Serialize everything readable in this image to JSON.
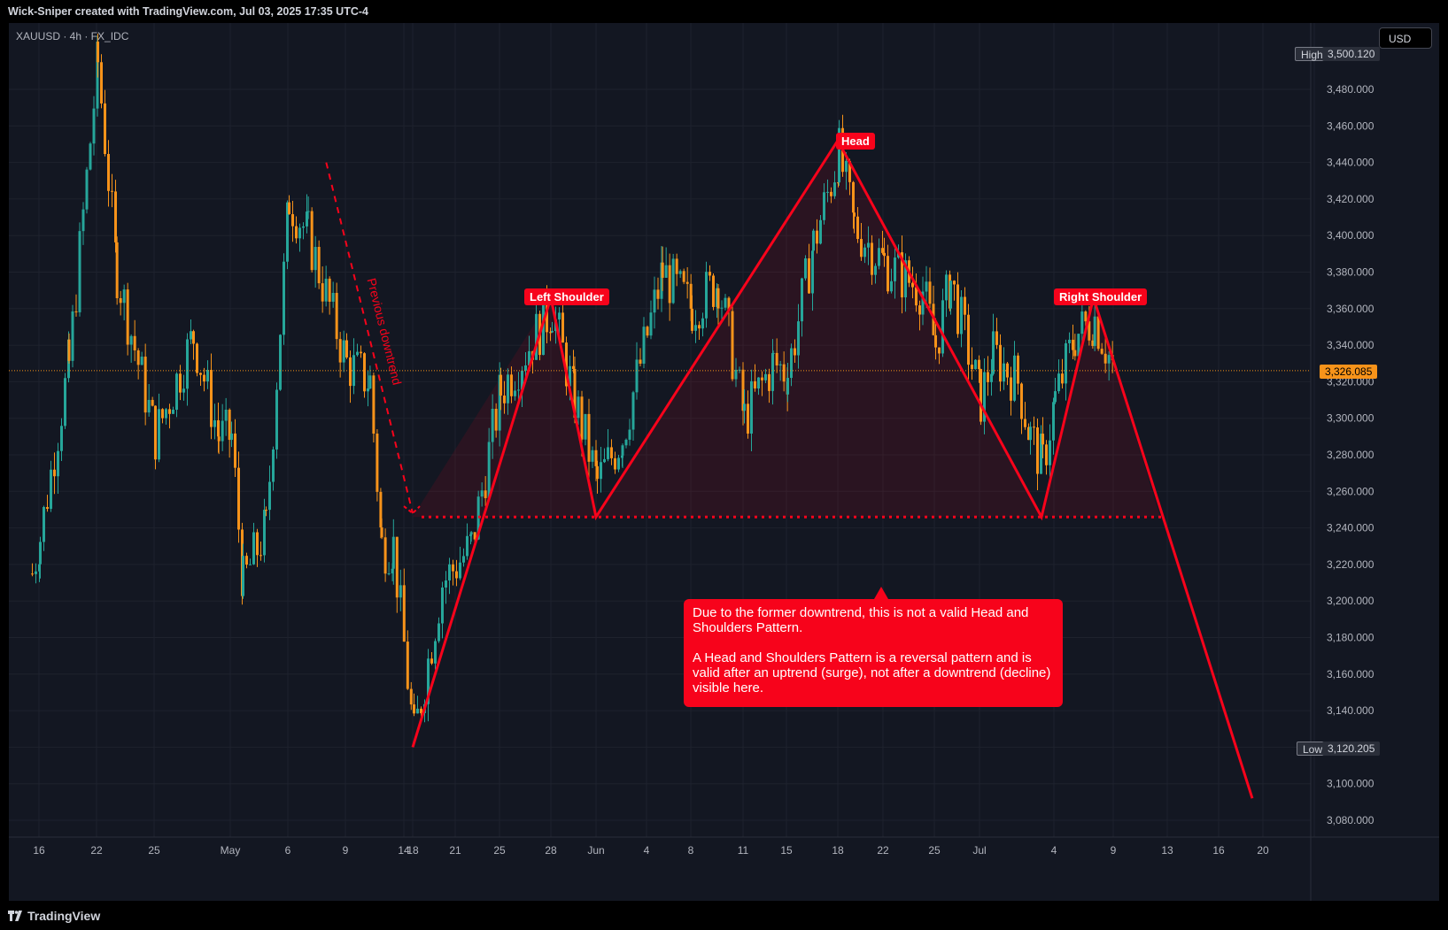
{
  "header": {
    "attribution": "Wick-Sniper created with TradingView.com, Jul 03, 2025 17:35 UTC-4"
  },
  "symbol_info": "XAUUSD · 4h · FX_IDC",
  "currency_button": "USD",
  "price_axis": {
    "ticks": [
      "3,480.000",
      "3,460.000",
      "3,440.000",
      "3,420.000",
      "3,400.000",
      "3,380.000",
      "3,360.000",
      "3,340.000",
      "3,320.000",
      "3,300.000",
      "3,280.000",
      "3,260.000",
      "3,240.000",
      "3,220.000",
      "3,200.000",
      "3,180.000",
      "3,160.000",
      "3,140.000",
      "3,100.000",
      "3,080.000"
    ],
    "high_label": "High",
    "high_value": "3,500.120",
    "low_label": "Low",
    "low_value": "3,120.205",
    "last_price": "3,326.085"
  },
  "time_axis": {
    "ticks": [
      "16",
      "22",
      "25",
      "May",
      "6",
      "9",
      "14",
      "18",
      "21",
      "25",
      "28",
      "Jun",
      "4",
      "8",
      "11",
      "15",
      "18",
      "22",
      "25",
      "Jul",
      "4",
      "9",
      "13",
      "16",
      "20"
    ]
  },
  "annotations": {
    "left_shoulder": "Left Shoulder",
    "head": "Head",
    "right_shoulder": "Right Shoulder",
    "previous_trend": "Previous downtrend",
    "note_line1": "Due to the former downtrend, this is not a valid Head and Shoulders Pattern.",
    "note_line2": "A Head and Shoulders Pattern is a reversal pattern and is valid after an uptrend (surge), not after a downtrend (decline) visible here."
  },
  "footer": {
    "brand": "TradingView"
  },
  "colors": {
    "background": "#131722",
    "bull": "#26a69a",
    "bear": "#f7931a",
    "pattern": "#f7031b",
    "last_price": "#f7931a"
  },
  "chart_data": {
    "type": "candlestick",
    "symbol": "XAUUSD",
    "interval": "4h",
    "ylim": [
      3070,
      3510
    ],
    "high": 3500.12,
    "low": 3120.205,
    "last": 3326.085,
    "anchors_x": [
      "Apr 14",
      "Apr 16",
      "Apr 22",
      "Apr 25",
      "May 1",
      "May 6",
      "May 9",
      "May 14",
      "May 15",
      "May 18",
      "May 21",
      "May 24",
      "May 28",
      "Jun 1",
      "Jun 4",
      "Jun 8",
      "Jun 11",
      "Jun 15",
      "Jun 18",
      "Jun 22",
      "Jun 25",
      "Jul 1",
      "Jul 4",
      "Jul 9",
      "Jul 13",
      "Jul 16",
      "Jul 20"
    ],
    "close_path": [
      {
        "x": "Apr 14",
        "y": 3215
      },
      {
        "x": "Apr 16",
        "y": 3235
      },
      {
        "x": "Apr 19",
        "y": 3330
      },
      {
        "x": "Apr 22",
        "y": 3495
      },
      {
        "x": "Apr 23",
        "y": 3380
      },
      {
        "x": "Apr 25",
        "y": 3290
      },
      {
        "x": "Apr 28",
        "y": 3345
      },
      {
        "x": "Apr 30",
        "y": 3290
      },
      {
        "x": "May 1",
        "y": 3290
      },
      {
        "x": "May 2",
        "y": 3210
      },
      {
        "x": "May 4",
        "y": 3240
      },
      {
        "x": "May 6",
        "y": 3420
      },
      {
        "x": "May 7",
        "y": 3400
      },
      {
        "x": "May 9",
        "y": 3330
      },
      {
        "x": "May 11",
        "y": 3320
      },
      {
        "x": "May 12",
        "y": 3230
      },
      {
        "x": "May 13",
        "y": 3230
      },
      {
        "x": "May 15",
        "y": 3125
      },
      {
        "x": "May 17",
        "y": 3210
      },
      {
        "x": "May 19",
        "y": 3230
      },
      {
        "x": "May 21",
        "y": 3315
      },
      {
        "x": "May 24",
        "y": 3360
      },
      {
        "x": "May 26",
        "y": 3310
      },
      {
        "x": "May 28",
        "y": 3265
      },
      {
        "x": "May 30",
        "y": 3290
      },
      {
        "x": "Jun 2",
        "y": 3380
      },
      {
        "x": "Jun 4",
        "y": 3360
      },
      {
        "x": "Jun 6",
        "y": 3375
      },
      {
        "x": "Jun 8",
        "y": 3300
      },
      {
        "x": "Jun 10",
        "y": 3330
      },
      {
        "x": "Jun 11",
        "y": 3325
      },
      {
        "x": "Jun 13",
        "y": 3395
      },
      {
        "x": "Jun 15",
        "y": 3445
      },
      {
        "x": "Jun 16",
        "y": 3405
      },
      {
        "x": "Jun 18",
        "y": 3385
      },
      {
        "x": "Jun 21",
        "y": 3370
      },
      {
        "x": "Jun 22",
        "y": 3340
      },
      {
        "x": "Jun 23",
        "y": 3375
      },
      {
        "x": "Jun 25",
        "y": 3310
      },
      {
        "x": "Jun 26",
        "y": 3335
      },
      {
        "x": "Jun 28",
        "y": 3320
      },
      {
        "x": "Jun 29",
        "y": 3290
      },
      {
        "x": "Jun 30",
        "y": 3275
      },
      {
        "x": "Jul 1",
        "y": 3310
      },
      {
        "x": "Jul 2",
        "y": 3345
      },
      {
        "x": "Jul 3",
        "y": 3355
      },
      {
        "x": "Jul 4",
        "y": 3326
      }
    ],
    "pattern": {
      "left_shoulder": {
        "x": "May 24",
        "y": 3366
      },
      "head": {
        "x": "Jun 15",
        "y": 3452
      },
      "right_shoulder": {
        "x": "Jul 3",
        "y": 3366
      },
      "neckline": 3246,
      "neck_left": {
        "x": "May 28",
        "y": 3246
      },
      "neck_right": {
        "x": "Jun 30",
        "y": 3246
      },
      "target": {
        "x": "Jul 16",
        "y": 3092
      },
      "start": {
        "x": "May 15",
        "y": 3120
      }
    },
    "previous_downtrend": {
      "from": {
        "x": "May 8",
        "y": 3440
      },
      "to": {
        "x": "May 14",
        "y": 3248
      }
    }
  }
}
